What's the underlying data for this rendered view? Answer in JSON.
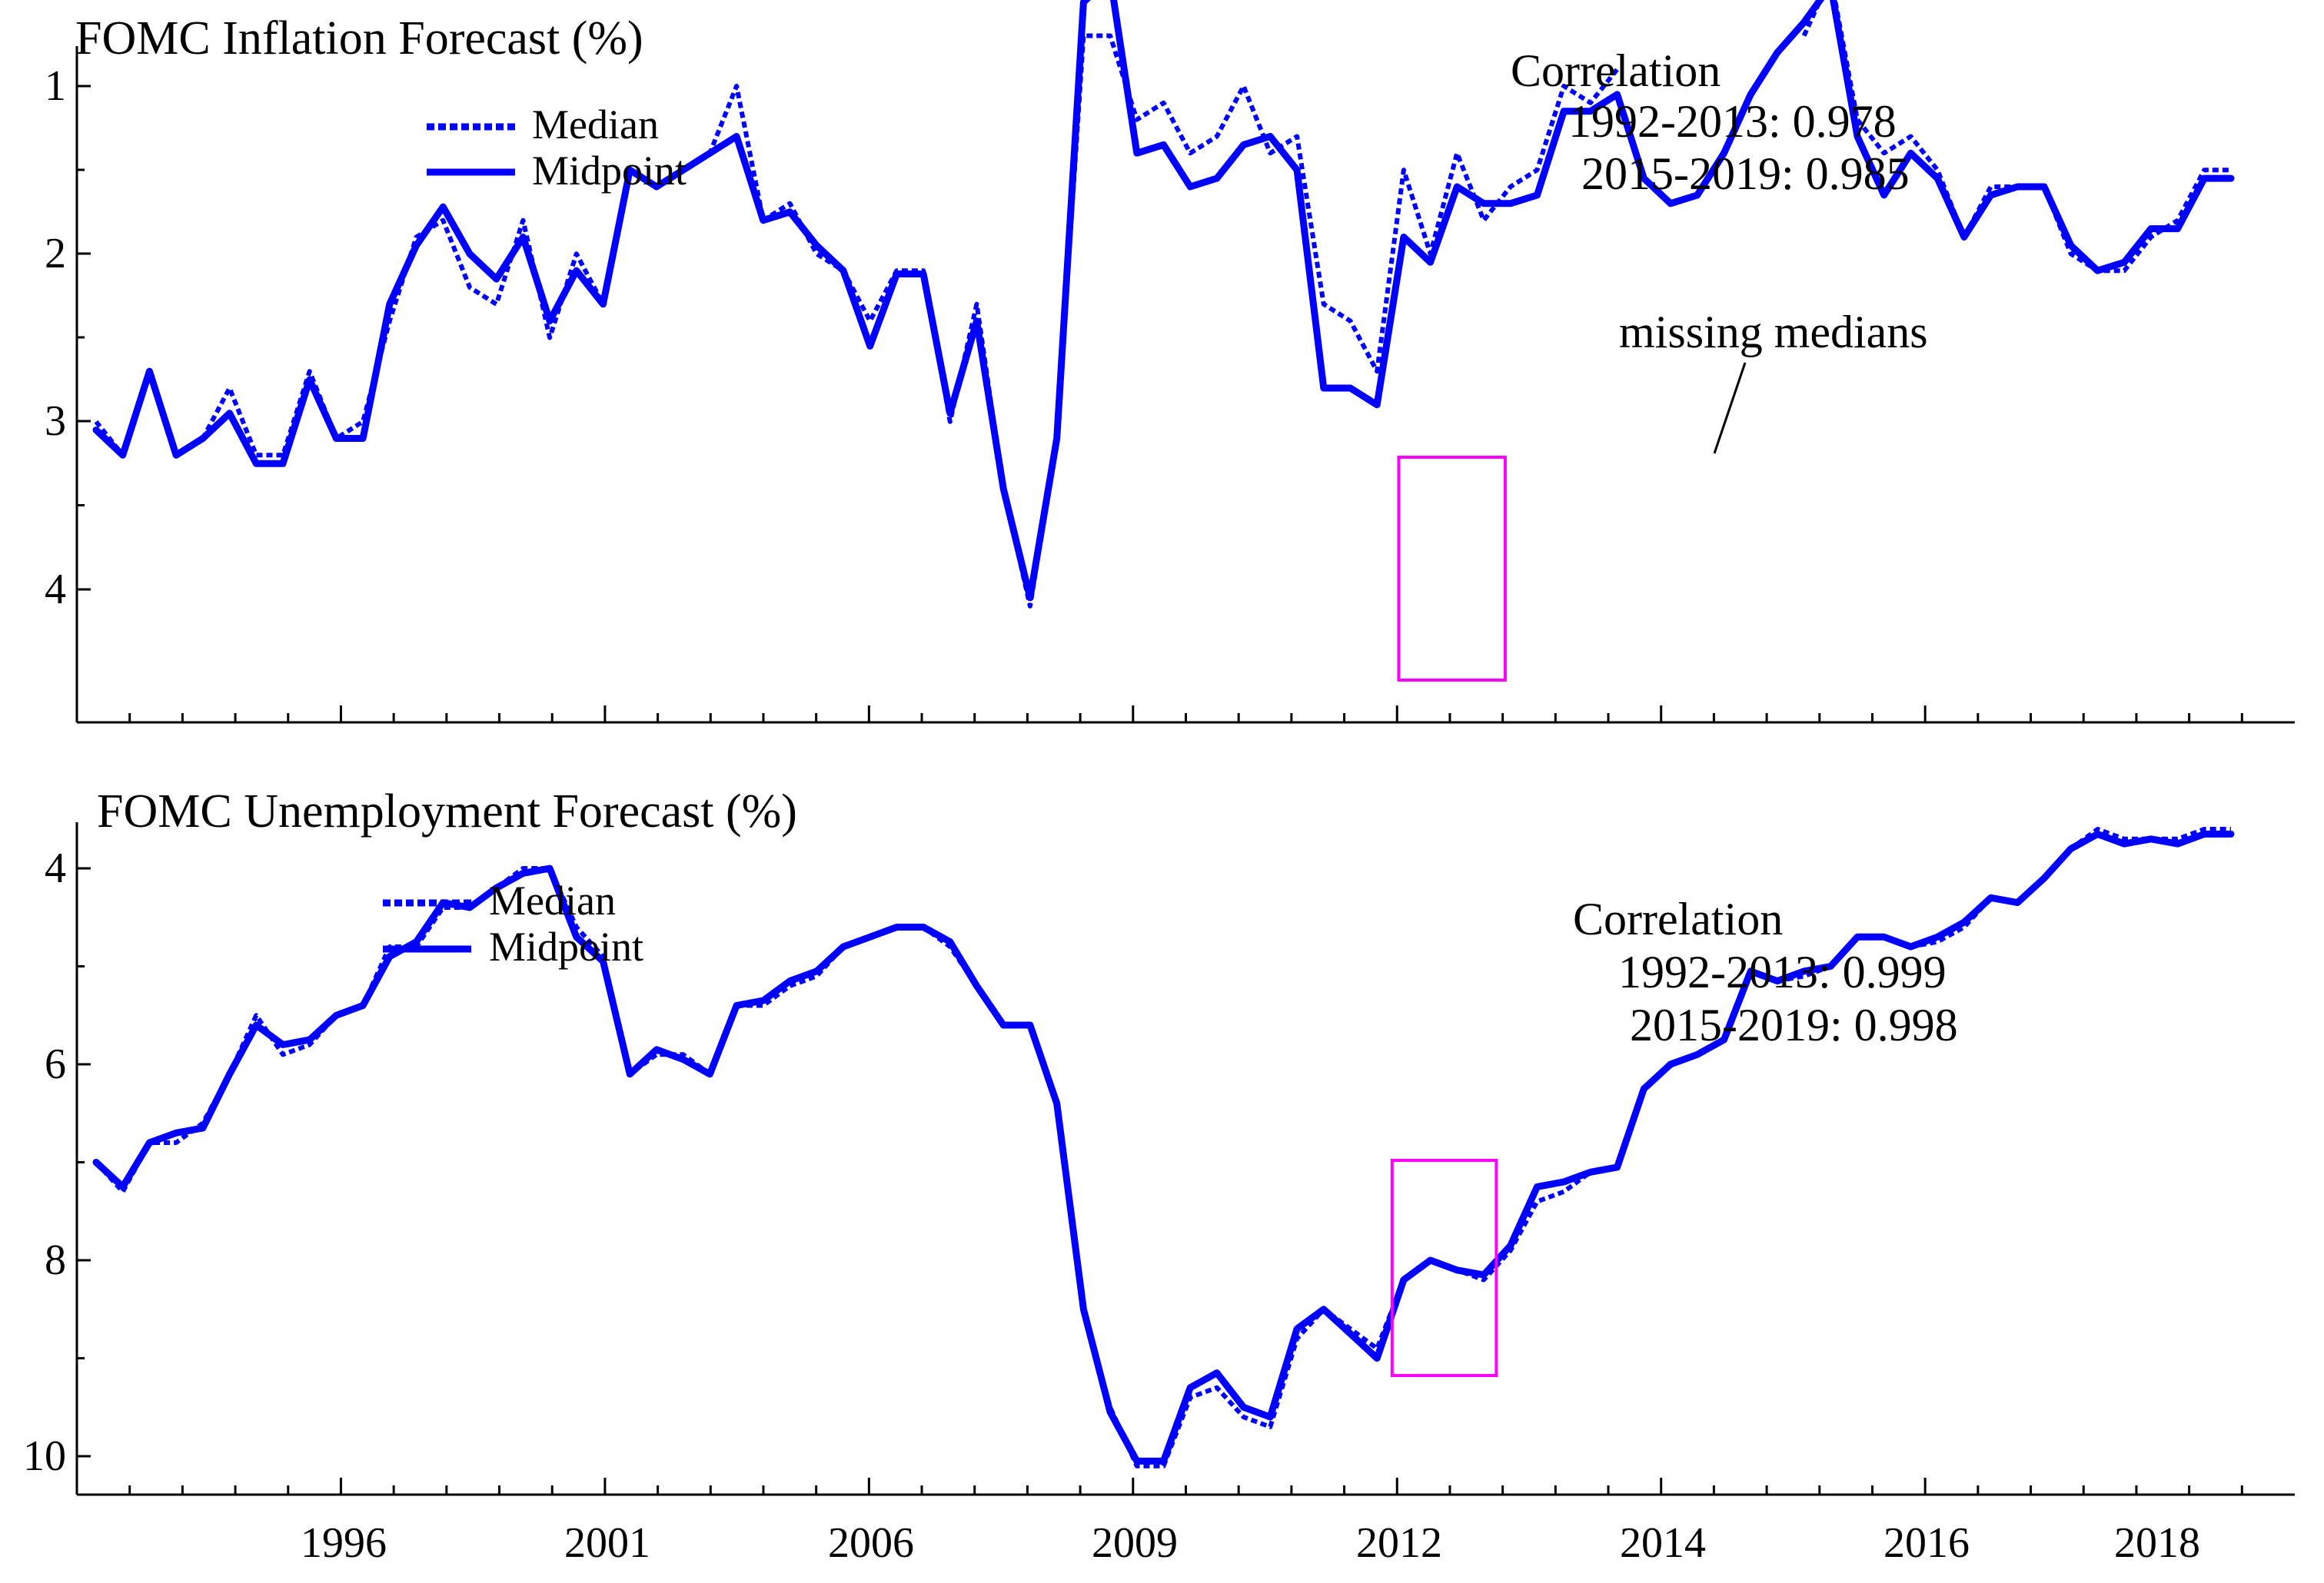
{
  "x_axis_labels": [
    "1996",
    "2001",
    "2006",
    "2009",
    "2012",
    "2014",
    "2016",
    "2018"
  ],
  "colors": {
    "series": "#0000ff",
    "highlight": "#ff00ff",
    "axis": "#000000"
  },
  "chart_data": [
    {
      "type": "line",
      "title": "FOMC Inflation Forecast (%)",
      "ylim": [
        0.3,
        4.2
      ],
      "yticks": [
        "1",
        "2",
        "3",
        "4"
      ],
      "legend": {
        "placement": "top-left",
        "entries": [
          "Median",
          "Midpoint"
        ]
      },
      "correlation": {
        "title": "Correlation",
        "lines": [
          "1992-2013: 0.978",
          "2015-2019: 0.985"
        ]
      },
      "annotation": "missing medians",
      "highlight_range": [
        0.596,
        0.644
      ],
      "series": [
        {
          "name": "Median",
          "style": "dotted",
          "values": [
            3.0,
            3.2,
            2.7,
            3.2,
            3.1,
            2.8,
            3.2,
            3.2,
            2.7,
            3.1,
            3.0,
            2.4,
            1.9,
            1.8,
            2.2,
            2.3,
            1.8,
            2.5,
            2.0,
            2.3,
            1.5,
            1.6,
            1.5,
            1.4,
            1.0,
            1.8,
            1.7,
            2.0,
            2.1,
            2.4,
            2.1,
            2.1,
            3.0,
            2.3,
            3.4,
            4.1,
            3.1,
            0.7,
            0.7,
            1.2,
            1.1,
            1.4,
            1.3,
            1.0,
            1.4,
            1.3,
            2.3,
            2.4,
            2.7,
            1.5,
            2.0,
            1.4,
            1.8,
            1.6,
            1.5,
            1.0,
            1.1,
            0.9,
            null,
            null,
            null,
            null,
            null,
            null,
            0.7,
            0.35,
            1.2,
            1.4,
            1.3,
            1.5,
            1.9,
            1.6,
            1.6,
            1.6,
            2.0,
            2.1,
            2.1,
            1.9,
            1.8,
            1.5,
            1.5
          ]
        },
        {
          "name": "Midpoint",
          "style": "solid",
          "values": [
            3.05,
            3.2,
            2.7,
            3.2,
            3.1,
            2.95,
            3.25,
            3.25,
            2.75,
            3.1,
            3.1,
            2.3,
            1.95,
            1.72,
            2.0,
            2.15,
            1.9,
            2.4,
            2.1,
            2.3,
            1.5,
            1.6,
            1.5,
            1.4,
            1.3,
            1.8,
            1.75,
            1.95,
            2.1,
            2.55,
            2.12,
            2.12,
            2.95,
            2.4,
            3.4,
            4.05,
            3.1,
            0.5,
            0.35,
            1.4,
            1.35,
            1.6,
            1.55,
            1.35,
            1.3,
            1.5,
            2.8,
            2.8,
            2.9,
            1.9,
            2.05,
            1.6,
            1.7,
            1.7,
            1.65,
            1.15,
            1.15,
            1.05,
            1.55,
            1.7,
            1.65,
            1.4,
            1.05,
            0.8,
            0.62,
            0.4,
            1.3,
            1.65,
            1.4,
            1.55,
            1.9,
            1.65,
            1.6,
            1.6,
            1.95,
            2.1,
            2.05,
            1.85,
            1.85,
            1.55,
            1.55
          ]
        }
      ]
    },
    {
      "type": "line",
      "title": "FOMC Unemployment Forecast (%)",
      "ylim": [
        3.6,
        10.4
      ],
      "yticks": [
        "4",
        "6",
        "8",
        "10"
      ],
      "legend": {
        "placement": "top-left",
        "entries": [
          "Median",
          "Midpoint"
        ]
      },
      "correlation": {
        "title": "Correlation",
        "lines": [
          "1992-2013: 0.999",
          "2015-2019: 0.998"
        ]
      },
      "highlight_range": [
        0.593,
        0.64
      ],
      "series": [
        {
          "name": "Median",
          "style": "dotted",
          "values": [
            7.0,
            7.3,
            6.8,
            6.8,
            6.6,
            6.1,
            5.5,
            5.9,
            5.8,
            5.5,
            5.4,
            4.8,
            4.8,
            4.4,
            4.4,
            4.2,
            4.0,
            4.0,
            4.6,
            4.9,
            6.1,
            5.9,
            5.9,
            6.1,
            5.4,
            5.4,
            5.2,
            5.1,
            4.8,
            4.7,
            4.6,
            4.6,
            4.8,
            5.2,
            5.6,
            5.6,
            6.4,
            8.5,
            9.5,
            10.1,
            10.1,
            9.4,
            9.3,
            9.6,
            9.7,
            8.8,
            8.5,
            8.7,
            8.9,
            8.2,
            8.0,
            8.1,
            8.2,
            7.9,
            7.4,
            7.3,
            7.1,
            null,
            null,
            null,
            null,
            null,
            null,
            5.15,
            5.1,
            5.0,
            4.7,
            4.7,
            4.8,
            4.75,
            4.6,
            4.3,
            4.35,
            4.1,
            3.8,
            3.6,
            3.7,
            3.7,
            3.7,
            3.6,
            3.6
          ]
        },
        {
          "name": "Midpoint",
          "style": "solid",
          "values": [
            7.0,
            7.25,
            6.8,
            6.7,
            6.65,
            6.1,
            5.6,
            5.8,
            5.75,
            5.5,
            5.4,
            4.9,
            4.75,
            4.35,
            4.4,
            4.2,
            4.05,
            4.0,
            4.7,
            4.95,
            6.1,
            5.85,
            5.95,
            6.1,
            5.4,
            5.35,
            5.15,
            5.05,
            4.8,
            4.7,
            4.6,
            4.6,
            4.75,
            5.2,
            5.6,
            5.6,
            6.4,
            8.5,
            9.55,
            10.05,
            10.05,
            9.3,
            9.15,
            9.5,
            9.6,
            8.7,
            8.5,
            8.75,
            9.0,
            8.2,
            8.0,
            8.1,
            8.15,
            7.85,
            7.25,
            7.2,
            7.1,
            7.05,
            6.25,
            6.0,
            5.9,
            5.75,
            5.05,
            5.15,
            5.05,
            5.0,
            4.7,
            4.7,
            4.8,
            4.7,
            4.55,
            4.3,
            4.35,
            4.1,
            3.8,
            3.65,
            3.75,
            3.7,
            3.75,
            3.65,
            3.65
          ]
        }
      ]
    }
  ]
}
